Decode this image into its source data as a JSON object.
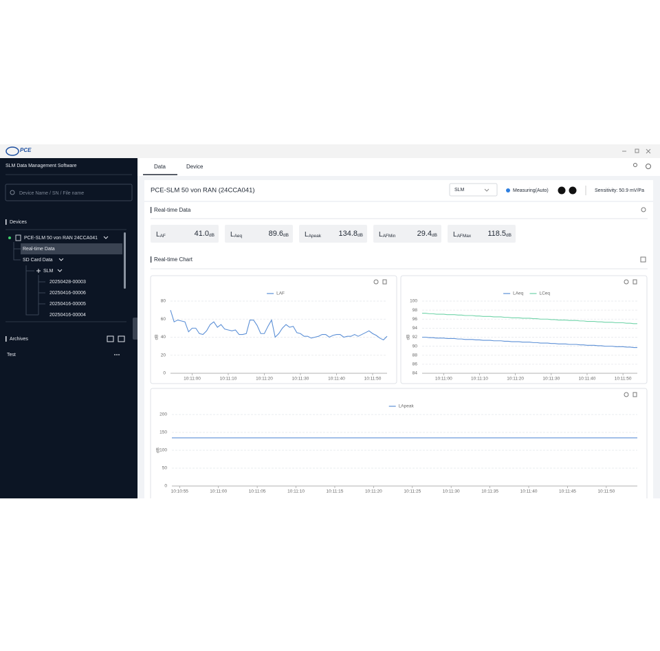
{
  "logo": "PCE",
  "app": {
    "title": "SLM Data Management Software"
  },
  "sidebar": {
    "search_placeholder": "Device Name / SN / File name",
    "devices_heading": "Devices",
    "device": "PCE-SLM 50 von RAN 24CCA041",
    "tree": {
      "realtime": "Real-time Data",
      "sd_card": "SD Card Data",
      "slm": "SLM",
      "files": [
        "20250428-00003",
        "20250416-00006",
        "20250416-00005",
        "20250416-00004"
      ]
    },
    "archives_heading": "Archives",
    "archives": [
      "Test"
    ]
  },
  "tabs": [
    "Data",
    "Device"
  ],
  "header": {
    "device_name": "PCE-SLM 50 von RAN (24CCA041)",
    "mode": "SLM",
    "status": "Measuring(Auto)",
    "sensitivity": "Sensitivity: 50.9 mV/Pa"
  },
  "realtime_data": {
    "title": "Real-time Data",
    "metrics": [
      {
        "symbol": "L",
        "subscript": "AF",
        "value": "41.0",
        "unit": "dB"
      },
      {
        "symbol": "L",
        "subscript": "Aeq",
        "value": "89.6",
        "unit": "dB"
      },
      {
        "symbol": "L",
        "subscript": "Apeak",
        "value": "134.8",
        "unit": "dB"
      },
      {
        "symbol": "L",
        "subscript": "AFMin",
        "value": "29.4",
        "unit": "dB"
      },
      {
        "symbol": "L",
        "subscript": "AFMax",
        "value": "118.5",
        "unit": "dB"
      }
    ]
  },
  "realtime_chart": {
    "title": "Real-time Chart"
  },
  "chart_data": [
    {
      "type": "line",
      "ylabel": "dB",
      "categories": [
        null,
        null,
        null,
        null,
        null,
        null,
        "10:11:00",
        null,
        null,
        null,
        null,
        null,
        null,
        null,
        null,
        null,
        "10:11:10",
        null,
        null,
        null,
        null,
        null,
        null,
        null,
        null,
        null,
        "10:11:20",
        null,
        null,
        null,
        null,
        null,
        null,
        null,
        null,
        null,
        "10:11:30",
        null,
        null,
        null,
        null,
        null,
        null,
        null,
        null,
        null,
        "10:11:40",
        null,
        null,
        null,
        null,
        null,
        null,
        null,
        null,
        null,
        "10:11:50",
        null,
        null,
        null,
        null
      ],
      "series": [
        {
          "name": "LAF",
          "color": "#5b8fd6",
          "values": [
            70,
            57,
            59,
            58,
            57,
            46,
            50,
            50,
            44,
            43,
            47,
            54,
            57,
            51,
            54,
            49,
            48,
            47,
            48,
            43,
            43,
            44,
            59,
            59,
            53,
            44,
            44,
            52,
            59,
            40,
            44,
            50,
            54,
            51,
            52,
            45,
            44,
            41,
            41,
            39,
            40,
            41,
            43,
            43,
            40,
            42,
            43,
            43,
            40,
            41,
            41,
            43,
            41,
            43,
            45,
            47,
            44,
            42,
            39,
            37,
            41
          ]
        }
      ],
      "ylim": [
        0,
        80
      ],
      "yticks": [
        0,
        20,
        40,
        60,
        80
      ],
      "grid": true
    },
    {
      "type": "line",
      "ylabel": "dB",
      "categories": [
        null,
        null,
        null,
        null,
        null,
        null,
        "10:11:00",
        null,
        null,
        null,
        null,
        null,
        null,
        null,
        null,
        null,
        "10:11:10",
        null,
        null,
        null,
        null,
        null,
        null,
        null,
        null,
        null,
        "10:11:20",
        null,
        null,
        null,
        null,
        null,
        null,
        null,
        null,
        null,
        "10:11:30",
        null,
        null,
        null,
        null,
        null,
        null,
        null,
        null,
        null,
        "10:11:40",
        null,
        null,
        null,
        null,
        null,
        null,
        null,
        null,
        null,
        "10:11:50",
        null,
        null,
        null,
        null
      ],
      "series": [
        {
          "name": "LAeq",
          "color": "#5b8fd6",
          "values": [
            92.0,
            92.0,
            91.9,
            91.9,
            91.8,
            91.8,
            91.8,
            91.7,
            91.7,
            91.7,
            91.6,
            91.6,
            91.5,
            91.5,
            91.5,
            91.4,
            91.4,
            91.3,
            91.3,
            91.3,
            91.2,
            91.2,
            91.2,
            91.1,
            91.1,
            91.0,
            91.0,
            91.0,
            90.9,
            90.9,
            90.9,
            90.8,
            90.8,
            90.7,
            90.7,
            90.7,
            90.6,
            90.6,
            90.5,
            90.5,
            90.5,
            90.4,
            90.4,
            90.4,
            90.3,
            90.3,
            90.2,
            90.2,
            90.2,
            90.1,
            90.1,
            90.0,
            90.0,
            90.0,
            89.9,
            89.9,
            89.9,
            89.8,
            89.8,
            89.7,
            89.7
          ]
        },
        {
          "name": "LCeq",
          "color": "#6fd3a8",
          "values": [
            97.3,
            97.3,
            97.2,
            97.2,
            97.1,
            97.1,
            97.1,
            97.0,
            97.0,
            97.0,
            96.9,
            96.9,
            96.8,
            96.8,
            96.8,
            96.7,
            96.7,
            96.6,
            96.6,
            96.6,
            96.5,
            96.5,
            96.5,
            96.4,
            96.4,
            96.3,
            96.3,
            96.3,
            96.2,
            96.2,
            96.2,
            96.1,
            96.1,
            96.0,
            96.0,
            96.0,
            95.9,
            95.9,
            95.8,
            95.8,
            95.8,
            95.7,
            95.7,
            95.7,
            95.6,
            95.6,
            95.5,
            95.5,
            95.5,
            95.4,
            95.4,
            95.3,
            95.3,
            95.3,
            95.2,
            95.2,
            95.2,
            95.1,
            95.1,
            95.0,
            95.0
          ]
        }
      ],
      "ylim": [
        84,
        100
      ],
      "yticks": [
        84,
        86,
        88,
        90,
        92,
        94,
        96,
        98,
        100
      ],
      "grid": true
    },
    {
      "type": "line",
      "ylabel": "dB",
      "categories": [
        null,
        "10:10:55",
        null,
        null,
        null,
        null,
        "10:11:00",
        null,
        null,
        null,
        null,
        "10:11:05",
        null,
        null,
        null,
        null,
        "10:11:10",
        null,
        null,
        null,
        null,
        "10:11:15",
        null,
        null,
        null,
        null,
        "10:11:20",
        null,
        null,
        null,
        null,
        "10:11:25",
        null,
        null,
        null,
        null,
        "10:11:30",
        null,
        null,
        null,
        null,
        "10:11:35",
        null,
        null,
        null,
        null,
        "10:11:40",
        null,
        null,
        null,
        null,
        "10:11:45",
        null,
        null,
        null,
        null,
        "10:11:50",
        null,
        null,
        null,
        null
      ],
      "series": [
        {
          "name": "LApeak",
          "color": "#5b8fd6",
          "values": [
            134.8,
            134.8,
            134.8,
            134.8,
            134.8,
            134.8,
            134.8,
            134.8,
            134.8,
            134.8,
            134.8,
            134.8,
            134.8,
            134.8,
            134.8,
            134.8,
            134.8,
            134.8,
            134.8,
            134.8,
            134.8,
            134.8,
            134.8,
            134.8,
            134.8,
            134.8,
            134.8,
            134.8,
            134.8,
            134.8,
            134.8,
            134.8,
            134.8,
            134.8,
            134.8,
            134.8,
            134.8,
            134.8,
            134.8,
            134.8,
            134.8,
            134.8,
            134.8,
            134.8,
            134.8,
            134.8,
            134.8,
            134.8,
            134.8,
            134.8,
            134.8,
            134.8,
            134.8,
            134.8,
            134.8,
            134.8,
            134.8,
            134.8,
            134.8,
            134.8,
            134.8
          ]
        }
      ],
      "ylim": [
        0,
        200
      ],
      "yticks": [
        0,
        50,
        100,
        150,
        200
      ],
      "grid": true
    }
  ]
}
